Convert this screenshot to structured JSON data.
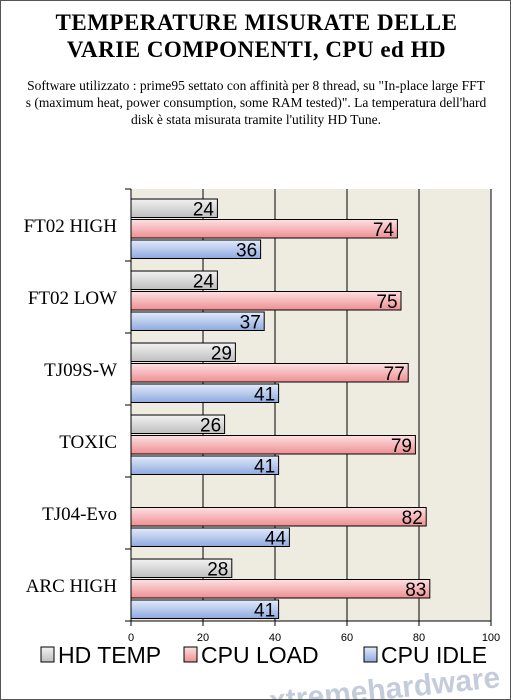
{
  "title_line1": "TEMPERATURE MISURATE DELLE",
  "title_line2": "VARIE COMPONENTI, CPU ed HD",
  "subtitle": "Software utilizzato : prime95 settato con affinità per 8 thread, su \"In-place large FFT s (maximum heat, power consumption, some RAM tested)\". La temperatura dell'hard disk è stata misurata tramite l'utility HD Tune.",
  "watermark": "xtremehardware",
  "chart_data": {
    "type": "bar",
    "orientation": "horizontal",
    "categories": [
      "FT02 HIGH",
      "FT02 LOW",
      "TJ09S-W",
      "TOXIC",
      "TJ04-Evo",
      "ARC HIGH"
    ],
    "series": [
      {
        "name": "HD TEMP",
        "color": "#d9d9d9",
        "values": [
          24,
          24,
          29,
          26,
          null,
          28
        ]
      },
      {
        "name": "CPU LOAD",
        "color": "#f6b2b4",
        "values": [
          74,
          75,
          77,
          79,
          82,
          83
        ]
      },
      {
        "name": "CPU IDLE",
        "color": "#b7c9ee",
        "values": [
          36,
          37,
          41,
          41,
          44,
          41
        ]
      }
    ],
    "xlim": [
      0,
      100
    ],
    "xticks": [
      0,
      20,
      40,
      60,
      80,
      100
    ],
    "grid": true,
    "legend": "bottom"
  }
}
